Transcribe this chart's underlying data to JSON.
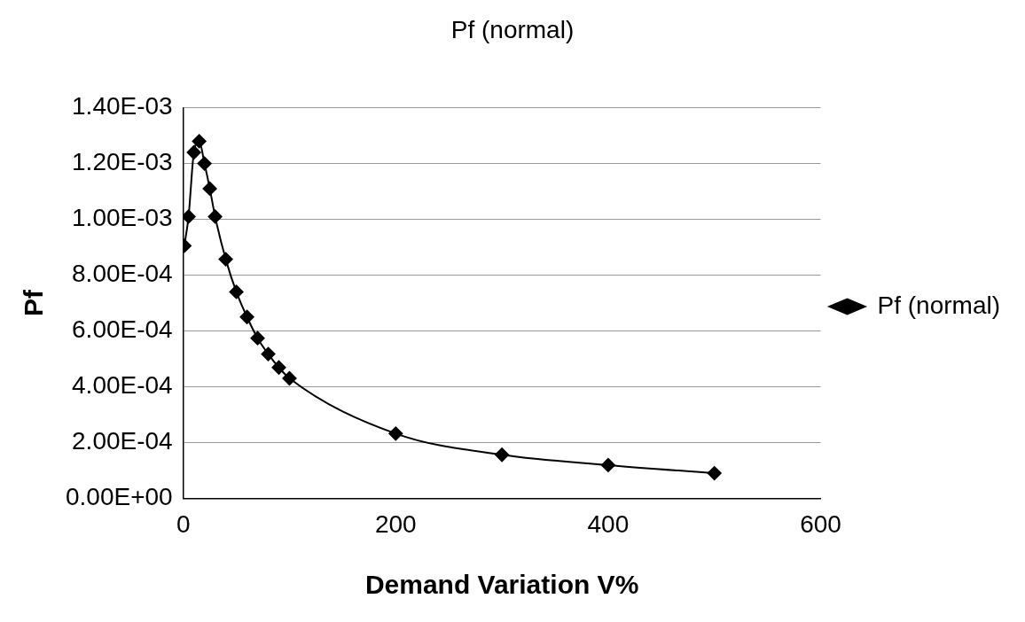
{
  "chart_data": {
    "type": "line",
    "title": "Pf (normal)",
    "xlabel": "Demand Variation V%",
    "ylabel": "Pf",
    "x": [
      1,
      5,
      10,
      15,
      20,
      25,
      30,
      40,
      50,
      60,
      70,
      80,
      90,
      100,
      200,
      300,
      400,
      500
    ],
    "series": [
      {
        "name": "Pf (normal)",
        "color": "#000000",
        "values": [
          0.000905,
          0.00101,
          0.00124,
          0.00128,
          0.0012,
          0.00111,
          0.00101,
          0.000857,
          0.00074,
          0.00065,
          0.000574,
          0.000517,
          0.000469,
          0.00043,
          0.000232,
          0.000156,
          0.000119,
          9e-05
        ]
      }
    ],
    "xlim": [
      0,
      600
    ],
    "xticks": [
      0,
      200,
      400,
      600
    ],
    "ylim": [
      0,
      0.0014
    ],
    "yticks": [
      {
        "value": 0,
        "label": "0.00E+00"
      },
      {
        "value": 0.0002,
        "label": "2.00E-04"
      },
      {
        "value": 0.0004,
        "label": "4.00E-04"
      },
      {
        "value": 0.0006,
        "label": "6.00E-04"
      },
      {
        "value": 0.0008,
        "label": "8.00E-04"
      },
      {
        "value": 0.001,
        "label": "1.00E-03"
      },
      {
        "value": 0.0012,
        "label": "1.20E-03"
      },
      {
        "value": 0.0014,
        "label": "1.40E-03"
      }
    ],
    "grid": "y",
    "legend": "right",
    "marker": "diamond",
    "line_style": "solid"
  }
}
